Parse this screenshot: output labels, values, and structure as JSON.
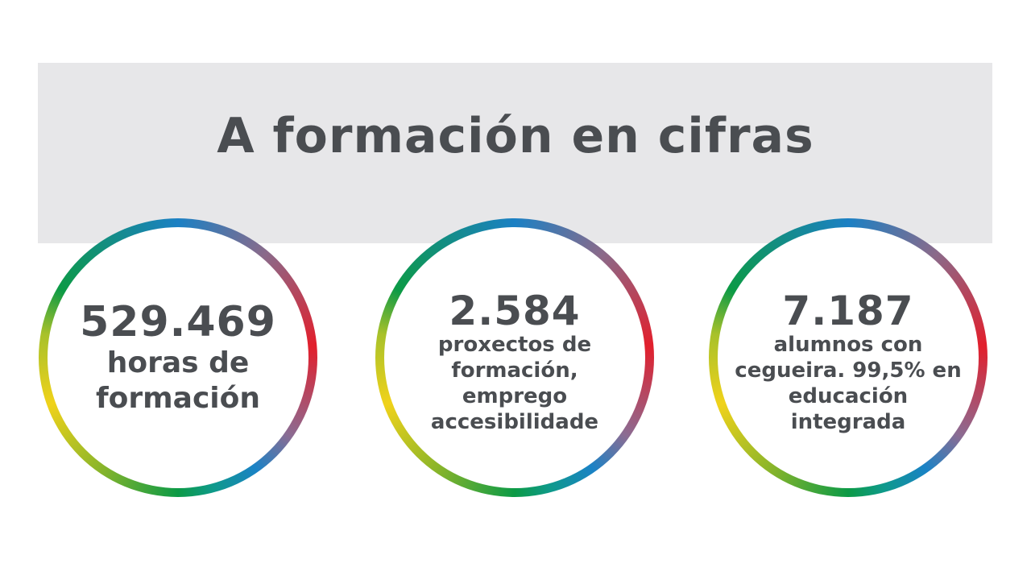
{
  "title": "A formación en cifras",
  "stats": [
    {
      "number": "529.469",
      "lines": [
        "horas de",
        "formación"
      ]
    },
    {
      "number": "2.584",
      "lines": [
        "proxectos de",
        "formación,",
        "emprego",
        "accesibilidade"
      ]
    },
    {
      "number": "7.187",
      "lines": [
        "alumnos con",
        "cegueira. 99,5% en",
        "educación",
        "integrada"
      ]
    }
  ],
  "colors": {
    "text": "#4a4d51",
    "band": "#e7e7e9",
    "ring_blue": "#1b80c4",
    "ring_red": "#e21f2c",
    "ring_green": "#0c9a46",
    "ring_yellow": "#f0d21a"
  }
}
